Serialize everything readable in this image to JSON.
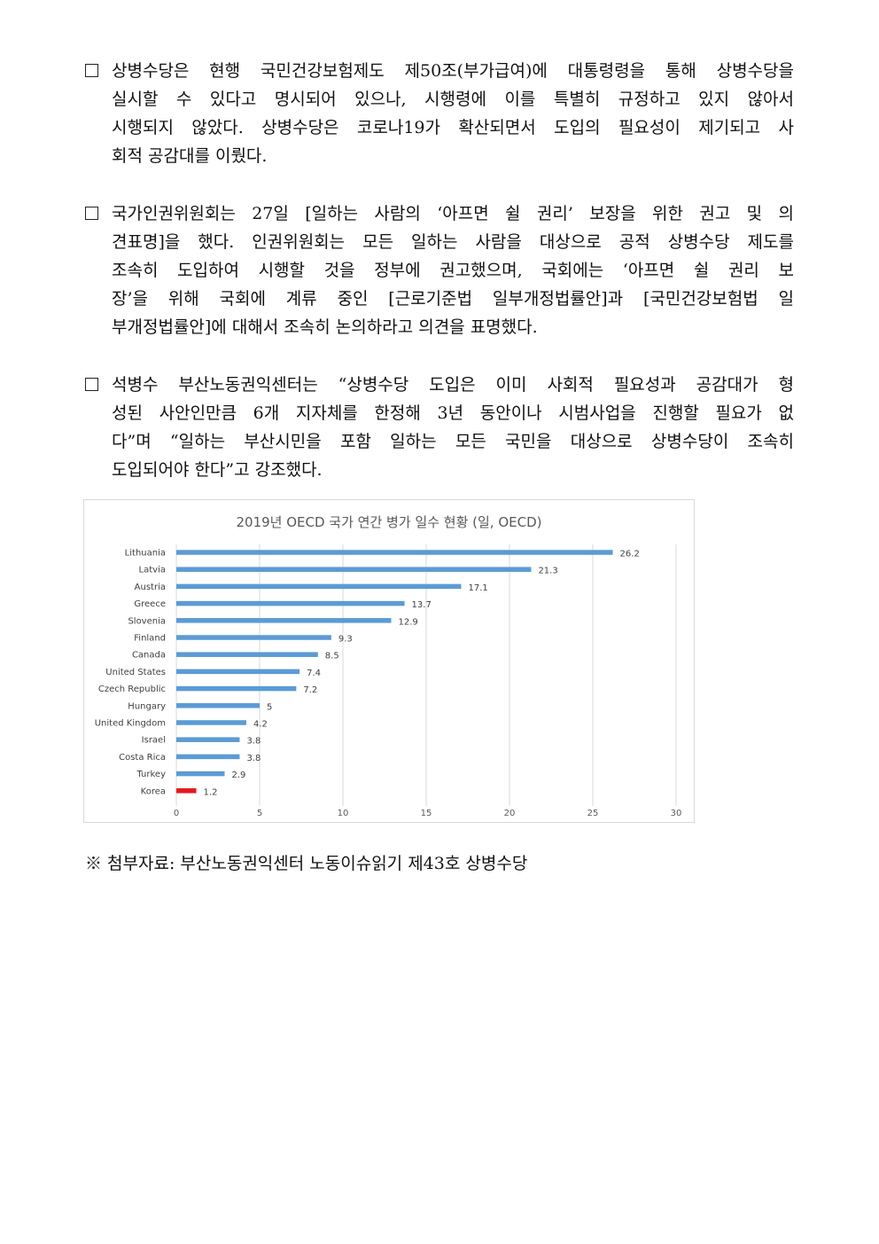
{
  "paragraphs": [
    {
      "lines": [
        "상병수당은 현행 국민건강보험제도 제50조(부가급여)에 대통령령을 통해 상병수당을",
        "실시할 수 있다고 명시되어 있으나, 시행령에 이를 특별히 규정하고 있지 않아서",
        "시행되지 않았다. 상병수당은 코로나19가 확산되면서 도입의 필요성이 제기되고 사",
        "회적 공감대를 이뤘다."
      ]
    },
    {
      "lines": [
        "국가인권위원회는 27일 [일하는 사람의 ‘아프면 쉴 권리’ 보장을 위한 권고 및 의",
        "견표명]을 했다. 인권위원회는 모든 일하는 사람을 대상으로 공적 상병수당 제도를",
        "조속히 도입하여 시행할 것을 정부에 권고했으며, 국회에는 ‘아프면 쉴 권리 보",
        "장’을 위해 국회에 계류 중인 [근로기준법 일부개정법률안]과 [국민건강보험법 일",
        "부개정법률안]에 대해서 조속히 논의하라고 의견을 표명했다."
      ]
    },
    {
      "lines": [
        "석병수 부산노동권익센터는 “상병수당 도입은 이미 사회적 필요성과 공감대가 형",
        "성된 사안인만큼 6개 지자체를 한정해 3년 동안이나 시범사업을 진행할 필요가 없",
        "다”며 “일하는 부산시민을 포함 일하는 모든 국민을 대상으로 상병수당이 조속히",
        "도입되어야 한다”고 강조했다."
      ]
    }
  ],
  "chart_data": {
    "type": "bar",
    "orientation": "horizontal",
    "title": "2019년 OECD 국가 연간 병가 일수 현황 (일, OECD)",
    "categories": [
      "Lithuania",
      "Latvia",
      "Austria",
      "Greece",
      "Slovenia",
      "Finland",
      "Canada",
      "United States",
      "Czech Republic",
      "Hungary",
      "United Kingdom",
      "Israel",
      "Costa Rica",
      "Turkey",
      "Korea"
    ],
    "values": [
      26.2,
      21.3,
      17.1,
      13.7,
      12.9,
      9.3,
      8.5,
      7.4,
      7.2,
      5,
      4.2,
      3.8,
      3.8,
      2.9,
      1.2
    ],
    "value_labels": [
      "26.2",
      "21.3",
      "17.1",
      "13.7",
      "12.9",
      "9.3",
      "8.5",
      "7.4",
      "7.2",
      "5",
      "4.2",
      "3.8",
      "3.8",
      "2.9",
      "1.2"
    ],
    "xlim": [
      0,
      30
    ],
    "x_ticks": [
      "0",
      "5",
      "10",
      "15",
      "20",
      "25",
      "30"
    ],
    "grid": true,
    "bar_color": "#5b9bd5",
    "highlight_color": "#e31a1c",
    "highlight_category": "Korea"
  },
  "footnote": "※ 첨부자료: 부산노동권익센터 노동이슈읽기 제43호 상병수당"
}
